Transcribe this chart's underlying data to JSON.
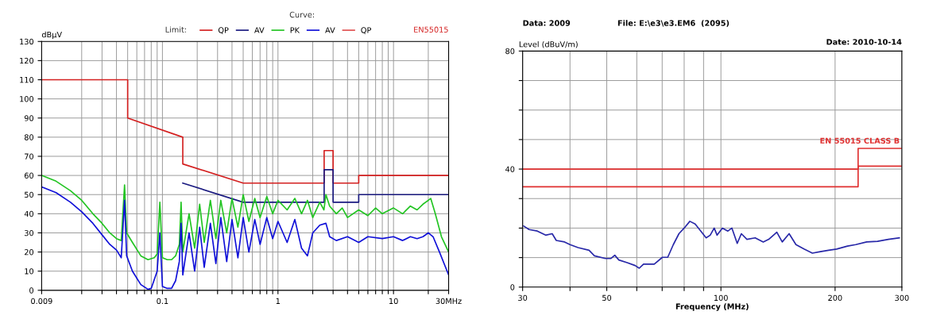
{
  "chart_data": [
    {
      "type": "line",
      "ylabel": "dBμV",
      "annotations": [
        "Limit:",
        "Curve:",
        "EN55015"
      ],
      "log": "x",
      "grid": true,
      "legend": "top",
      "xlim": [
        0.009,
        30
      ],
      "ylim": [
        0,
        130
      ],
      "xticks": [
        {
          "value": 0.009,
          "label": "0.009"
        },
        {
          "value": 0.02,
          "label": null
        },
        {
          "value": 0.03,
          "label": null
        },
        {
          "value": 0.04,
          "label": null
        },
        {
          "value": 0.05,
          "label": null
        },
        {
          "value": 0.06,
          "label": null
        },
        {
          "value": 0.07,
          "label": null
        },
        {
          "value": 0.08,
          "label": null
        },
        {
          "value": 0.09,
          "label": null
        },
        {
          "value": 0.1,
          "label": "0.1"
        },
        {
          "value": 0.2,
          "label": null
        },
        {
          "value": 0.3,
          "label": null
        },
        {
          "value": 0.4,
          "label": null
        },
        {
          "value": 0.5,
          "label": null
        },
        {
          "value": 0.6,
          "label": null
        },
        {
          "value": 0.7,
          "label": null
        },
        {
          "value": 0.8,
          "label": null
        },
        {
          "value": 0.9,
          "label": null
        },
        {
          "value": 1,
          "label": "1"
        },
        {
          "value": 2,
          "label": null
        },
        {
          "value": 3,
          "label": null
        },
        {
          "value": 4,
          "label": null
        },
        {
          "value": 5,
          "label": null
        },
        {
          "value": 6,
          "label": null
        },
        {
          "value": 7,
          "label": null
        },
        {
          "value": 8,
          "label": null
        },
        {
          "value": 9,
          "label": null
        },
        {
          "value": 10,
          "label": "10"
        },
        {
          "value": 20,
          "label": null
        },
        {
          "value": 30,
          "label": "30MHz"
        }
      ],
      "yticks": [
        0,
        10,
        20,
        30,
        40,
        50,
        60,
        70,
        80,
        90,
        100,
        110,
        120,
        130
      ],
      "series": [
        {
          "name": "QP",
          "color": "#d42020",
          "x": [
            0.009,
            0.05,
            0.05,
            0.15,
            0.15,
            0.5,
            2.51,
            2.51,
            3.0,
            3.0,
            5,
            5,
            30
          ],
          "values": [
            110,
            110,
            90,
            80,
            66,
            56,
            56,
            73,
            73,
            56,
            56,
            60,
            60
          ]
        },
        {
          "name": "AV",
          "color": "#1a1a80",
          "x": [
            0.15,
            0.5,
            2.51,
            2.51,
            3.0,
            3.0,
            5,
            5,
            30
          ],
          "values": [
            56,
            46,
            46,
            63,
            63,
            46,
            46,
            50,
            50
          ]
        },
        {
          "name": "PK",
          "color": "#22c422",
          "x": [
            0.009,
            0.012,
            0.016,
            0.02,
            0.025,
            0.03,
            0.035,
            0.04,
            0.044,
            0.047,
            0.049,
            0.055,
            0.065,
            0.075,
            0.085,
            0.09,
            0.095,
            0.1,
            0.11,
            0.12,
            0.13,
            0.14,
            0.145,
            0.15,
            0.17,
            0.19,
            0.21,
            0.23,
            0.26,
            0.29,
            0.32,
            0.36,
            0.4,
            0.45,
            0.5,
            0.56,
            0.63,
            0.7,
            0.8,
            0.9,
            1.0,
            1.2,
            1.4,
            1.6,
            1.8,
            2.0,
            2.3,
            2.5,
            2.6,
            2.8,
            3.2,
            3.6,
            4,
            5,
            6,
            7,
            8,
            10,
            12,
            14,
            16,
            18,
            20,
            21,
            23,
            26,
            30
          ],
          "values": [
            60,
            57,
            52,
            47,
            40,
            35,
            30,
            27,
            26,
            55,
            30,
            25,
            18,
            16,
            17,
            19,
            46,
            17,
            16,
            16,
            18,
            24,
            46,
            20,
            40,
            22,
            45,
            25,
            47,
            27,
            47,
            30,
            48,
            33,
            50,
            36,
            48,
            38,
            49,
            40,
            47,
            42,
            48,
            40,
            47,
            38,
            46,
            42,
            50,
            44,
            40,
            43,
            38,
            42,
            39,
            43,
            40,
            43,
            40,
            44,
            42,
            45,
            47,
            48,
            40,
            28,
            20
          ]
        },
        {
          "name": "AV",
          "color": "#1010d8",
          "x": [
            0.009,
            0.012,
            0.016,
            0.02,
            0.025,
            0.03,
            0.035,
            0.04,
            0.044,
            0.047,
            0.049,
            0.055,
            0.065,
            0.075,
            0.08,
            0.09,
            0.095,
            0.1,
            0.11,
            0.12,
            0.13,
            0.14,
            0.145,
            0.15,
            0.17,
            0.19,
            0.21,
            0.23,
            0.26,
            0.29,
            0.32,
            0.36,
            0.4,
            0.45,
            0.5,
            0.56,
            0.63,
            0.7,
            0.8,
            0.9,
            1.0,
            1.2,
            1.4,
            1.6,
            1.8,
            2.0,
            2.3,
            2.6,
            2.8,
            3.2,
            4,
            5,
            6,
            8,
            10,
            12,
            14,
            16,
            18,
            20,
            22,
            25,
            30
          ],
          "values": [
            54,
            51,
            46,
            41,
            35,
            29,
            24,
            21,
            17,
            47,
            18,
            10,
            3,
            0.5,
            1,
            10,
            30,
            2,
            1,
            1,
            5,
            15,
            35,
            8,
            30,
            10,
            33,
            12,
            35,
            14,
            38,
            15,
            37,
            17,
            38,
            20,
            37,
            24,
            38,
            27,
            36,
            25,
            37,
            22,
            18,
            30,
            34,
            35,
            28,
            26,
            28,
            25,
            28,
            27,
            28,
            26,
            28,
            27,
            28,
            30,
            28,
            20,
            8
          ]
        },
        {
          "name": "QP",
          "color": "#e05050"
        }
      ]
    },
    {
      "type": "line",
      "ylabel": "Level (dBuV/m)",
      "xlabel": "Frequency (MHz)",
      "annotations": [
        "Data: 2009",
        "File: E:\\e3\\e3.EM6  (2095)",
        "Date: 2010-10-14"
      ],
      "log": "x",
      "grid": true,
      "xlim": [
        30,
        300
      ],
      "ylim": [
        0,
        80
      ],
      "xticks": [
        30,
        {
          "value": 40,
          "label": null
        },
        50,
        {
          "value": 60,
          "label": null
        },
        {
          "value": 70,
          "label": null
        },
        {
          "value": 80,
          "label": null
        },
        {
          "value": 90,
          "label": null
        },
        100,
        200,
        300
      ],
      "yticks": [
        0,
        {
          "value": 10,
          "label": null
        },
        {
          "value": 20,
          "label": null
        },
        {
          "value": 30,
          "label": null
        },
        40,
        {
          "value": 50,
          "label": null
        },
        {
          "value": 60,
          "label": null
        },
        {
          "value": 70,
          "label": null
        },
        80
      ],
      "series": [
        {
          "name": "EN 55015 CLASS B",
          "color": "#e03030",
          "x": [
            30,
            230,
            230,
            300
          ],
          "values": [
            40,
            40,
            47,
            47
          ]
        },
        {
          "color": "#e03030",
          "x": [
            30,
            230,
            230,
            300
          ],
          "values": [
            34,
            34,
            41,
            41
          ]
        },
        {
          "color": "#2828a8",
          "x": [
            30.2,
            31.2,
            32.8,
            34.5,
            35.9,
            36.8,
            38.7,
            40.0,
            42.0,
            44.9,
            46.4,
            49.6,
            51.3,
            52.5,
            53.8,
            56.6,
            59.4,
            60.9,
            62.5,
            66.7,
            70.1,
            72.4,
            74.9,
            77.5,
            80.0,
            82.8,
            85.5,
            88.5,
            91.4,
            93.7,
            96.0,
            97.7,
            100.9,
            104.3,
            106.9,
            110.4,
            113.2,
            117.1,
            123.1,
            129.3,
            133.7,
            140.4,
            145.1,
            151.3,
            157.7,
            165.6,
            174.2,
            182.9,
            192.3,
            201.9,
            215.6,
            226.7,
            242.3,
            258.8,
            276.4,
            295.4
          ],
          "values": [
            20.7,
            19.5,
            19.0,
            17.6,
            18.1,
            15.8,
            15.3,
            14.4,
            13.4,
            12.5,
            10.6,
            9.7,
            9.7,
            10.8,
            9.2,
            8.3,
            7.3,
            6.4,
            7.8,
            7.8,
            10.1,
            10.1,
            14.4,
            18.1,
            20.0,
            22.3,
            21.4,
            19.0,
            16.7,
            17.6,
            20.0,
            17.6,
            20.0,
            19.0,
            20.0,
            14.8,
            18.1,
            16.2,
            16.7,
            15.3,
            16.2,
            18.6,
            15.3,
            18.1,
            14.4,
            12.9,
            11.5,
            12.0,
            12.5,
            12.9,
            13.9,
            14.4,
            15.3,
            15.5,
            16.2,
            16.7
          ]
        }
      ]
    }
  ]
}
